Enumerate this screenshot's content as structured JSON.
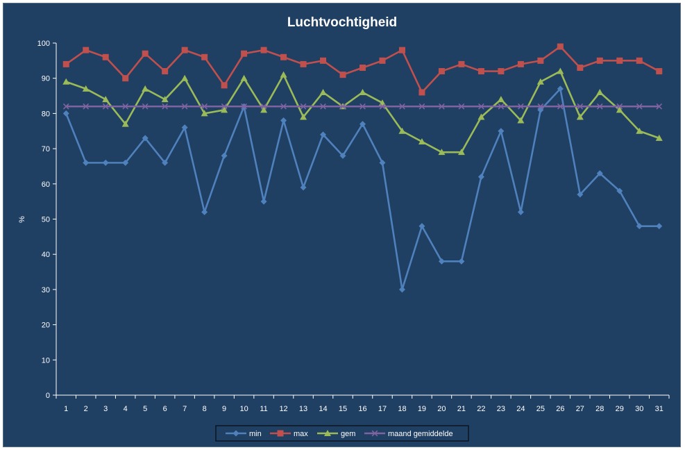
{
  "chart_data": {
    "type": "line",
    "title": "Luchtvochtigheid",
    "xlabel": "",
    "ylabel": "%",
    "ylim": [
      0,
      100
    ],
    "yticks": [
      0,
      10,
      20,
      30,
      40,
      50,
      60,
      70,
      80,
      90,
      100
    ],
    "categories": [
      "1",
      "2",
      "3",
      "4",
      "5",
      "6",
      "7",
      "8",
      "9",
      "10",
      "11",
      "12",
      "13",
      "14",
      "15",
      "16",
      "17",
      "18",
      "19",
      "20",
      "21",
      "22",
      "23",
      "24",
      "25",
      "26",
      "27",
      "28",
      "29",
      "30",
      "31"
    ],
    "grid": false,
    "legend": "bottom",
    "background": "#1f3f63",
    "series": [
      {
        "name": "min",
        "color": "#4f81bd",
        "marker": "diamond",
        "values": [
          80,
          66,
          66,
          66,
          73,
          66,
          76,
          52,
          68,
          82,
          55,
          78,
          59,
          74,
          68,
          77,
          66,
          30,
          48,
          38,
          38,
          62,
          75,
          52,
          81,
          87,
          57,
          63,
          58,
          48,
          48
        ]
      },
      {
        "name": "max",
        "color": "#c0504d",
        "marker": "square",
        "values": [
          94,
          98,
          96,
          90,
          97,
          92,
          98,
          96,
          88,
          97,
          98,
          96,
          94,
          95,
          91,
          93,
          95,
          98,
          86,
          92,
          94,
          92,
          92,
          94,
          95,
          99,
          93,
          95,
          95,
          95,
          92
        ]
      },
      {
        "name": "gem",
        "color": "#9bbb59",
        "marker": "triangle",
        "values": [
          89,
          87,
          84,
          77,
          87,
          84,
          90,
          80,
          81,
          90,
          81,
          91,
          79,
          86,
          82,
          86,
          83,
          75,
          72,
          69,
          69,
          79,
          84,
          78,
          89,
          92,
          79,
          86,
          81,
          75,
          73
        ]
      },
      {
        "name": "maand gemiddelde",
        "color": "#8064a2",
        "marker": "x",
        "values": [
          82,
          82,
          82,
          82,
          82,
          82,
          82,
          82,
          82,
          82,
          82,
          82,
          82,
          82,
          82,
          82,
          82,
          82,
          82,
          82,
          82,
          82,
          82,
          82,
          82,
          82,
          82,
          82,
          82,
          82,
          82
        ]
      }
    ]
  }
}
